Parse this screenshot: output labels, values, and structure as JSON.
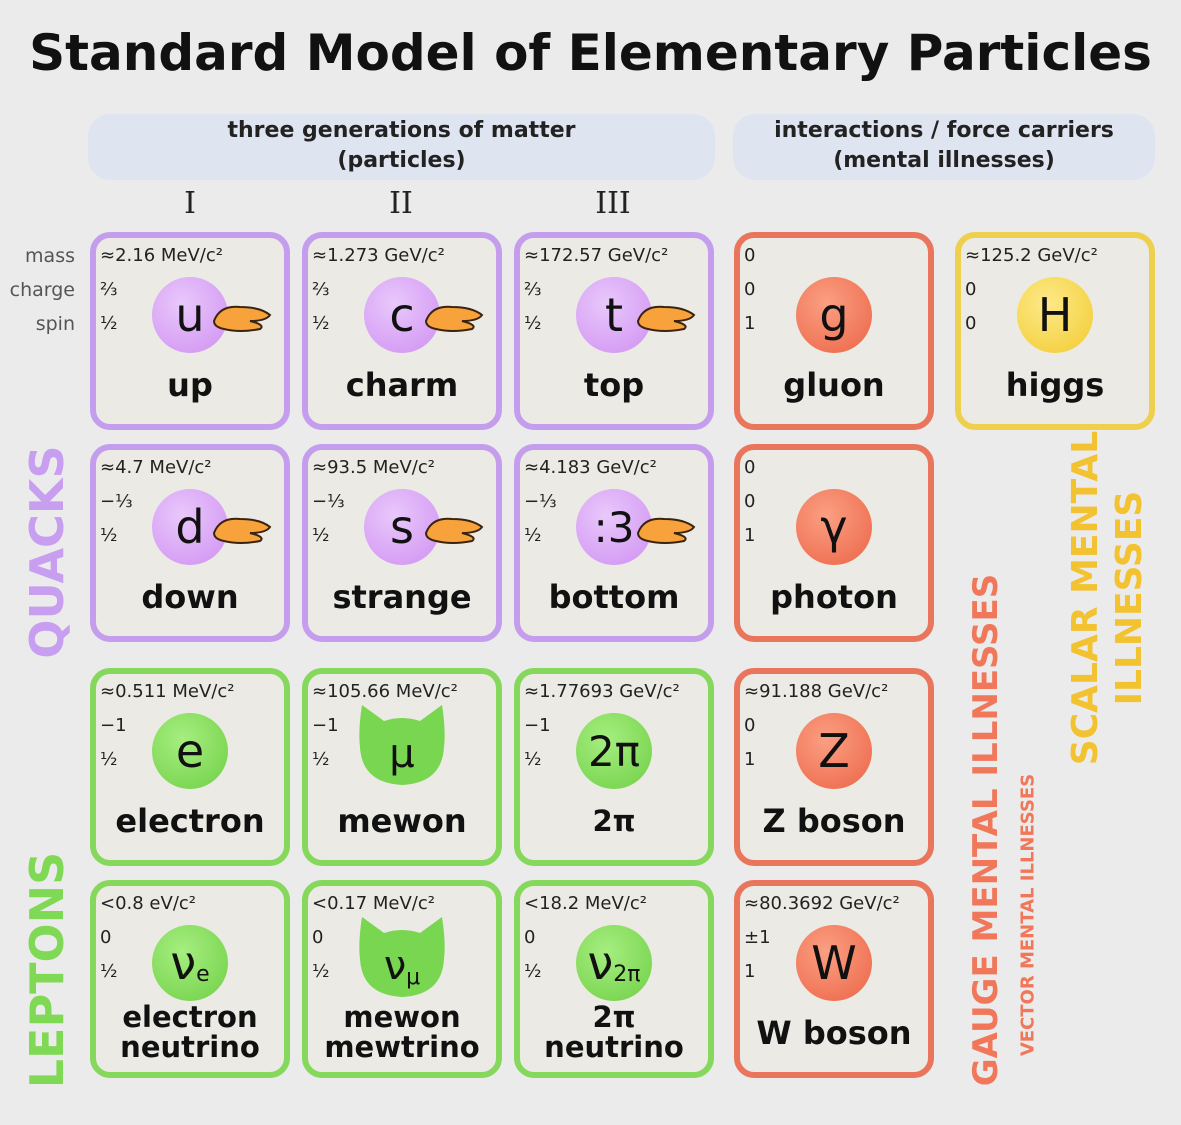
{
  "title": "Standard Model of Elementary Particles",
  "headers": [
    {
      "line1": "three generations of matter",
      "line2": "(particles)"
    },
    {
      "line1": "interactions / force carriers",
      "line2": "(mental illnesses)"
    }
  ],
  "generations": [
    "I",
    "II",
    "III"
  ],
  "row_labels": [
    "mass",
    "charge",
    "spin"
  ],
  "group_labels": {
    "quarks": "QUACKS",
    "leptons": "LEPTONS",
    "gauge": "GAUGE MENTAL ILLNESSES",
    "vector": "VECTOR MENTAL ILLNESSES",
    "scalar": [
      "SCALAR MENTAL",
      "ILLNESSES"
    ]
  },
  "particles": [
    {
      "mass": "≈2.16 MeV/c²",
      "charge": "⅔",
      "spin": "½",
      "symbol": "u",
      "name": [
        "up"
      ]
    },
    {
      "mass": "≈1.273 GeV/c²",
      "charge": "⅔",
      "spin": "½",
      "symbol": "c",
      "name": [
        "charm"
      ]
    },
    {
      "mass": "≈172.57 GeV/c²",
      "charge": "⅔",
      "spin": "½",
      "symbol": "t",
      "name": [
        "top"
      ]
    },
    {
      "mass": "0",
      "charge": "0",
      "spin": "1",
      "symbol": "g",
      "name": [
        "gluon"
      ]
    },
    {
      "mass": "≈125.2 GeV/c²",
      "charge": "0",
      "spin": "0",
      "symbol": "H",
      "name": [
        "higgs"
      ]
    },
    {
      "mass": "≈4.7 MeV/c²",
      "charge": "−⅓",
      "spin": "½",
      "symbol": "d",
      "name": [
        "down"
      ]
    },
    {
      "mass": "≈93.5 MeV/c²",
      "charge": "−⅓",
      "spin": "½",
      "symbol": "s",
      "name": [
        "strange"
      ]
    },
    {
      "mass": "≈4.183 GeV/c²",
      "charge": "−⅓",
      "spin": "½",
      "symbol": ":3",
      "name": [
        "bottom"
      ]
    },
    {
      "mass": "0",
      "charge": "0",
      "spin": "1",
      "symbol": "γ",
      "name": [
        "photon"
      ]
    },
    {
      "mass": "≈0.511 MeV/c²",
      "charge": "−1",
      "spin": "½",
      "symbol": "e",
      "name": [
        "electron"
      ]
    },
    {
      "mass": "≈105.66 MeV/c²",
      "charge": "−1",
      "spin": "½",
      "symbol": "μ",
      "name": [
        "mewon"
      ]
    },
    {
      "mass": "≈1.77693 GeV/c²",
      "charge": "−1",
      "spin": "½",
      "symbol": "2π",
      "name": [
        "2π"
      ]
    },
    {
      "mass": "≈91.188 GeV/c²",
      "charge": "0",
      "spin": "1",
      "symbol": "Z",
      "name": [
        "Z boson"
      ]
    },
    {
      "mass": "<0.8 eV/c²",
      "charge": "0",
      "spin": "½",
      "symbol": "ν",
      "sub": "e",
      "name": [
        "electron",
        "neutrino"
      ]
    },
    {
      "mass": "<0.17 MeV/c²",
      "charge": "0",
      "spin": "½",
      "symbol": "ν",
      "sub": "μ",
      "name": [
        "mewon",
        "mewtrino"
      ]
    },
    {
      "mass": "<18.2 MeV/c²",
      "charge": "0",
      "spin": "½",
      "symbol": "ν",
      "sub": "2π",
      "name": [
        "2π",
        "neutrino"
      ]
    },
    {
      "mass": "≈80.3692 GeV/c²",
      "charge": "±1",
      "spin": "1",
      "symbol": "W",
      "name": [
        "W boson"
      ]
    }
  ]
}
